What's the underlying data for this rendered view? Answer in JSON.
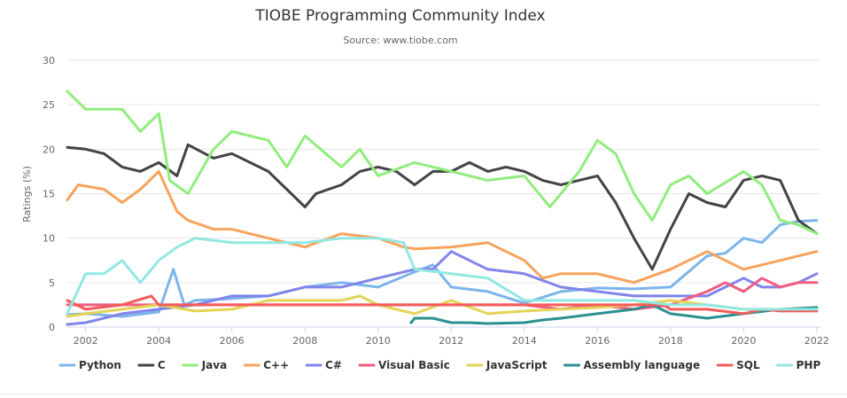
{
  "chart_data": {
    "type": "line",
    "title": "TIOBE Programming Community Index",
    "subtitle": "Source: www.tiobe.com",
    "ylabel": "Ratings (%)",
    "xlabel": "",
    "xlim": [
      2001.5,
      2022.1
    ],
    "ylim": [
      0,
      30
    ],
    "yticks": [
      0,
      5,
      10,
      15,
      20,
      25,
      30
    ],
    "xticks": [
      2002,
      2004,
      2006,
      2008,
      2010,
      2012,
      2014,
      2016,
      2018,
      2020,
      2022
    ],
    "grid": true,
    "legend_position": "bottom",
    "series": [
      {
        "name": "Python",
        "color": "#7cb5ec",
        "points": [
          [
            2001.5,
            1.4
          ],
          [
            2002,
            1.5
          ],
          [
            2003,
            1.2
          ],
          [
            2004,
            1.7
          ],
          [
            2004.4,
            6.5
          ],
          [
            2004.7,
            2.5
          ],
          [
            2005,
            3.0
          ],
          [
            2006,
            3.2
          ],
          [
            2007,
            3.5
          ],
          [
            2008,
            4.5
          ],
          [
            2009,
            5.0
          ],
          [
            2010,
            4.5
          ],
          [
            2011,
            6.2
          ],
          [
            2011.5,
            7.0
          ],
          [
            2012,
            4.5
          ],
          [
            2013,
            4.0
          ],
          [
            2014,
            2.7
          ],
          [
            2015,
            4.0
          ],
          [
            2016,
            4.4
          ],
          [
            2017,
            4.3
          ],
          [
            2018,
            4.5
          ],
          [
            2019,
            8.0
          ],
          [
            2019.5,
            8.3
          ],
          [
            2020,
            10.0
          ],
          [
            2020.5,
            9.5
          ],
          [
            2021,
            11.5
          ],
          [
            2021.5,
            11.9
          ],
          [
            2022,
            12.0
          ]
        ]
      },
      {
        "name": "C",
        "color": "#434348",
        "points": [
          [
            2001.5,
            20.2
          ],
          [
            2002,
            20.0
          ],
          [
            2002.5,
            19.5
          ],
          [
            2003,
            18.0
          ],
          [
            2003.5,
            17.5
          ],
          [
            2004,
            18.5
          ],
          [
            2004.5,
            17.0
          ],
          [
            2004.8,
            20.5
          ],
          [
            2005.5,
            19.0
          ],
          [
            2006,
            19.5
          ],
          [
            2007,
            17.5
          ],
          [
            2007.5,
            15.5
          ],
          [
            2008,
            13.5
          ],
          [
            2008.3,
            15.0
          ],
          [
            2009,
            16.0
          ],
          [
            2009.5,
            17.5
          ],
          [
            2010,
            18.0
          ],
          [
            2010.5,
            17.5
          ],
          [
            2011,
            16.0
          ],
          [
            2011.5,
            17.5
          ],
          [
            2012,
            17.5
          ],
          [
            2012.5,
            18.5
          ],
          [
            2013,
            17.5
          ],
          [
            2013.5,
            18.0
          ],
          [
            2014,
            17.5
          ],
          [
            2014.5,
            16.5
          ],
          [
            2015,
            16.0
          ],
          [
            2015.5,
            16.5
          ],
          [
            2016,
            17.0
          ],
          [
            2016.5,
            14.0
          ],
          [
            2017,
            10.0
          ],
          [
            2017.5,
            6.5
          ],
          [
            2018,
            11.0
          ],
          [
            2018.5,
            15.0
          ],
          [
            2019,
            14.0
          ],
          [
            2019.5,
            13.5
          ],
          [
            2020,
            16.5
          ],
          [
            2020.5,
            17.0
          ],
          [
            2021,
            16.5
          ],
          [
            2021.5,
            12.0
          ],
          [
            2022,
            10.5
          ]
        ]
      },
      {
        "name": "Java",
        "color": "#90ed7d",
        "points": [
          [
            2001.5,
            26.5
          ],
          [
            2002,
            24.5
          ],
          [
            2003,
            24.5
          ],
          [
            2003.5,
            22.0
          ],
          [
            2004,
            24.0
          ],
          [
            2004.3,
            16.5
          ],
          [
            2004.8,
            15.0
          ],
          [
            2005.5,
            20.0
          ],
          [
            2006,
            22.0
          ],
          [
            2007,
            21.0
          ],
          [
            2007.5,
            18.0
          ],
          [
            2008,
            21.5
          ],
          [
            2009,
            18.0
          ],
          [
            2009.5,
            20.0
          ],
          [
            2010,
            17.0
          ],
          [
            2011,
            18.5
          ],
          [
            2012,
            17.5
          ],
          [
            2013,
            16.5
          ],
          [
            2014,
            17.0
          ],
          [
            2014.7,
            13.5
          ],
          [
            2015.5,
            17.5
          ],
          [
            2016,
            21.0
          ],
          [
            2016.5,
            19.5
          ],
          [
            2017,
            15.0
          ],
          [
            2017.5,
            12.0
          ],
          [
            2018,
            16.0
          ],
          [
            2018.5,
            17.0
          ],
          [
            2019,
            15.0
          ],
          [
            2020,
            17.5
          ],
          [
            2020.5,
            16.0
          ],
          [
            2021,
            12.0
          ],
          [
            2021.5,
            11.5
          ],
          [
            2022,
            10.5
          ]
        ]
      },
      {
        "name": "C++",
        "color": "#f7a35c",
        "points": [
          [
            2001.5,
            14.3
          ],
          [
            2001.8,
            16.0
          ],
          [
            2002.5,
            15.5
          ],
          [
            2003,
            14.0
          ],
          [
            2003.5,
            15.5
          ],
          [
            2004,
            17.5
          ],
          [
            2004.5,
            13.0
          ],
          [
            2004.8,
            12.0
          ],
          [
            2005.5,
            11.0
          ],
          [
            2006,
            11.0
          ],
          [
            2007,
            10.0
          ],
          [
            2008,
            9.0
          ],
          [
            2009,
            10.5
          ],
          [
            2010,
            10.0
          ],
          [
            2010.7,
            9.0
          ],
          [
            2011,
            8.8
          ],
          [
            2012,
            9.0
          ],
          [
            2013,
            9.5
          ],
          [
            2014,
            7.5
          ],
          [
            2014.5,
            5.5
          ],
          [
            2015,
            6.0
          ],
          [
            2016,
            6.0
          ],
          [
            2017,
            5.0
          ],
          [
            2018,
            6.5
          ],
          [
            2019,
            8.5
          ],
          [
            2019.5,
            7.5
          ],
          [
            2020,
            6.5
          ],
          [
            2021,
            7.5
          ],
          [
            2021.5,
            8.0
          ],
          [
            2022,
            8.5
          ]
        ]
      },
      {
        "name": "C#",
        "color": "#8085e9",
        "points": [
          [
            2001.5,
            0.3
          ],
          [
            2002,
            0.5
          ],
          [
            2003,
            1.5
          ],
          [
            2004,
            2.0
          ],
          [
            2005,
            2.5
          ],
          [
            2006,
            3.5
          ],
          [
            2007,
            3.5
          ],
          [
            2008,
            4.5
          ],
          [
            2009,
            4.5
          ],
          [
            2010,
            5.5
          ],
          [
            2011,
            6.5
          ],
          [
            2011.5,
            6.5
          ],
          [
            2012,
            8.5
          ],
          [
            2013,
            6.5
          ],
          [
            2014,
            6.0
          ],
          [
            2015,
            4.5
          ],
          [
            2016,
            4.0
          ],
          [
            2017,
            3.5
          ],
          [
            2018,
            3.5
          ],
          [
            2019,
            3.5
          ],
          [
            2020,
            5.5
          ],
          [
            2020.5,
            4.5
          ],
          [
            2021,
            4.5
          ],
          [
            2021.5,
            5.0
          ],
          [
            2022,
            6.0
          ]
        ]
      },
      {
        "name": "Visual Basic",
        "color": "#f15c80",
        "points": [
          [
            2001.5,
            2.5
          ],
          [
            2002,
            2.5
          ],
          [
            2003,
            2.5
          ],
          [
            2004,
            2.5
          ],
          [
            2005,
            2.5
          ],
          [
            2008,
            2.5
          ],
          [
            2011,
            2.5
          ],
          [
            2014,
            2.5
          ],
          [
            2015,
            2.0
          ],
          [
            2016,
            2.5
          ],
          [
            2017,
            2.0
          ],
          [
            2018,
            2.5
          ],
          [
            2019,
            4.0
          ],
          [
            2019.5,
            5.0
          ],
          [
            2020,
            4.0
          ],
          [
            2020.5,
            5.5
          ],
          [
            2021,
            4.5
          ],
          [
            2021.5,
            5.0
          ],
          [
            2022,
            5.0
          ]
        ]
      },
      {
        "name": "JavaScript",
        "color": "#e4d354",
        "points": [
          [
            2001.5,
            1.2
          ],
          [
            2002,
            1.5
          ],
          [
            2003,
            2.0
          ],
          [
            2004,
            2.5
          ],
          [
            2005,
            1.8
          ],
          [
            2006,
            2.0
          ],
          [
            2007,
            3.0
          ],
          [
            2008,
            3.0
          ],
          [
            2009,
            3.0
          ],
          [
            2009.5,
            3.5
          ],
          [
            2010,
            2.5
          ],
          [
            2011,
            1.5
          ],
          [
            2012,
            3.0
          ],
          [
            2013,
            1.5
          ],
          [
            2014,
            1.8
          ],
          [
            2015,
            2.0
          ],
          [
            2016,
            2.2
          ],
          [
            2017,
            2.5
          ],
          [
            2018,
            3.0
          ],
          [
            2019,
            2.5
          ],
          [
            2020,
            2.0
          ],
          [
            2021,
            2.0
          ],
          [
            2022,
            2.2
          ]
        ]
      },
      {
        "name": "Assembly language",
        "color": "#2b908f",
        "points": [
          [
            2010.9,
            0.5
          ],
          [
            2011,
            1.0
          ],
          [
            2011.5,
            1.0
          ],
          [
            2012,
            0.5
          ],
          [
            2012.5,
            0.5
          ],
          [
            2013,
            0.4
          ],
          [
            2014,
            0.5
          ],
          [
            2014.5,
            0.8
          ],
          [
            2015,
            1.0
          ],
          [
            2016,
            1.5
          ],
          [
            2017,
            2.0
          ],
          [
            2017.5,
            2.5
          ],
          [
            2018,
            1.5
          ],
          [
            2019,
            1.0
          ],
          [
            2020,
            1.5
          ],
          [
            2021,
            2.0
          ],
          [
            2022,
            2.2
          ]
        ]
      },
      {
        "name": "SQL",
        "color": "#f45b5b",
        "points": [
          [
            2001.5,
            3.0
          ],
          [
            2002,
            2.0
          ],
          [
            2003,
            2.5
          ],
          [
            2003.8,
            3.5
          ],
          [
            2004,
            2.5
          ],
          [
            2006,
            2.5
          ],
          [
            2010,
            2.5
          ],
          [
            2012,
            2.5
          ],
          [
            2014,
            2.5
          ],
          [
            2016,
            2.5
          ],
          [
            2017,
            2.5
          ],
          [
            2017.8,
            2.5
          ],
          [
            2018,
            2.0
          ],
          [
            2019,
            2.0
          ],
          [
            2020,
            1.5
          ],
          [
            2020.5,
            2.0
          ],
          [
            2021,
            1.8
          ],
          [
            2022,
            1.8
          ]
        ]
      },
      {
        "name": "PHP",
        "color": "#91e8e1",
        "points": [
          [
            2001.5,
            1.5
          ],
          [
            2002,
            6.0
          ],
          [
            2002.5,
            6.0
          ],
          [
            2003,
            7.5
          ],
          [
            2003.5,
            5.0
          ],
          [
            2004,
            7.5
          ],
          [
            2004.5,
            9.0
          ],
          [
            2005,
            10.0
          ],
          [
            2006,
            9.5
          ],
          [
            2007,
            9.5
          ],
          [
            2008,
            9.5
          ],
          [
            2009,
            10.0
          ],
          [
            2010,
            10.0
          ],
          [
            2010.7,
            9.5
          ],
          [
            2011,
            6.5
          ],
          [
            2012,
            6.0
          ],
          [
            2013,
            5.5
          ],
          [
            2014,
            3.0
          ],
          [
            2015,
            3.0
          ],
          [
            2016,
            3.0
          ],
          [
            2017,
            3.0
          ],
          [
            2018,
            2.5
          ],
          [
            2019,
            2.5
          ],
          [
            2020,
            2.0
          ],
          [
            2021,
            2.0
          ],
          [
            2022,
            2.0
          ]
        ]
      }
    ]
  }
}
